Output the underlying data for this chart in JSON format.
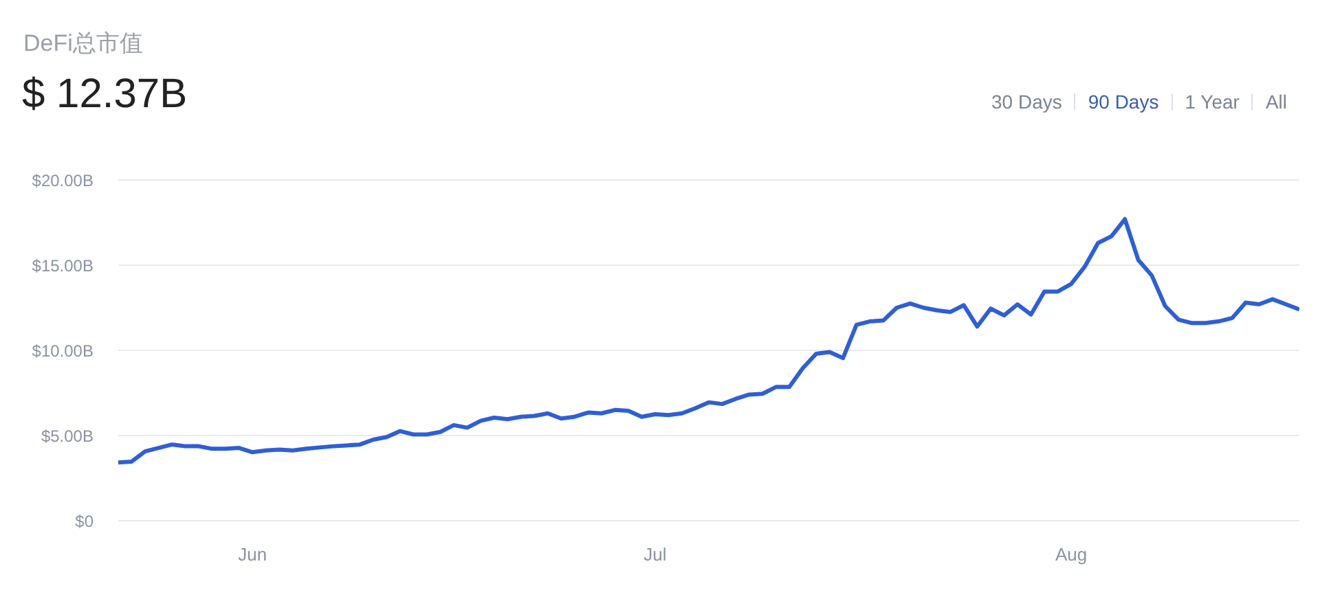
{
  "chart_data": {
    "type": "line",
    "title": "DeFi总市值",
    "subtitle": "$ 12.37B",
    "annotations": [
      "30 Days",
      "90 Days",
      "1 Year",
      "All"
    ],
    "x": [
      "--05-22",
      "--05-23",
      "--05-24",
      "--05-25",
      "--05-26",
      "--05-27",
      "--05-28",
      "--05-29",
      "--05-30",
      "--05-31",
      "--06-01",
      "--06-02",
      "--06-03",
      "--06-04",
      "--06-05",
      "--06-06",
      "--06-07",
      "--06-08",
      "--06-09",
      "--06-10",
      "--06-11",
      "--06-12",
      "--06-13",
      "--06-14",
      "--06-15",
      "--06-16",
      "--06-17",
      "--06-18",
      "--06-19",
      "--06-20",
      "--06-21",
      "--06-22",
      "--06-23",
      "--06-24",
      "--06-25",
      "--06-26",
      "--06-27",
      "--06-28",
      "--06-29",
      "--06-30",
      "--07-01",
      "--07-02",
      "--07-03",
      "--07-04",
      "--07-05",
      "--07-06",
      "--07-07",
      "--07-08",
      "--07-09",
      "--07-10",
      "--07-11",
      "--07-12",
      "--07-13",
      "--07-14",
      "--07-15",
      "--07-16",
      "--07-17",
      "--07-18",
      "--07-19",
      "--07-20",
      "--07-21",
      "--07-22",
      "--07-23",
      "--07-24",
      "--07-25",
      "--07-26",
      "--07-27",
      "--07-28",
      "--07-29",
      "--07-30",
      "--07-31",
      "--08-01",
      "--08-02",
      "--08-03",
      "--08-04",
      "--08-05",
      "--08-06",
      "--08-07",
      "--08-08",
      "--08-09",
      "--08-10",
      "--08-11",
      "--08-12",
      "--08-13",
      "--08-14",
      "--08-15",
      "--08-16",
      "--08-17",
      "--08-18"
    ],
    "series": [
      {
        "color": "#2f5fd6",
        "values": [
          3.42,
          3.47,
          4.07,
          4.27,
          4.47,
          4.37,
          4.37,
          4.22,
          4.22,
          4.27,
          4.02,
          4.12,
          4.17,
          4.12,
          4.22,
          4.3,
          4.37,
          4.42,
          4.47,
          4.76,
          4.91,
          5.26,
          5.06,
          5.06,
          5.21,
          5.61,
          5.46,
          5.86,
          6.05,
          5.96,
          6.1,
          6.15,
          6.3,
          6.0,
          6.1,
          6.35,
          6.3,
          6.5,
          6.45,
          6.1,
          6.25,
          6.2,
          6.3,
          6.6,
          6.95,
          6.85,
          7.15,
          7.4,
          7.45,
          7.85,
          7.85,
          8.95,
          9.8,
          9.9,
          9.55,
          11.5,
          11.7,
          11.75,
          12.5,
          12.75,
          12.5,
          12.35,
          12.25,
          12.65,
          11.4,
          12.45,
          12.05,
          12.7,
          12.1,
          13.45,
          13.45,
          13.9,
          14.9,
          16.3,
          16.7,
          17.7,
          15.3,
          14.4,
          12.6,
          11.8,
          11.6,
          11.6,
          11.7,
          11.9,
          12.8,
          12.7,
          13.0,
          12.7,
          12.4
        ]
      }
    ],
    "xlim": [
      "--05-22",
      "--08-18"
    ],
    "xticks": [
      {
        "value": "--06-01",
        "label": "Jun"
      },
      {
        "value": "--07-01",
        "label": "Jul"
      },
      {
        "value": "--08-01",
        "label": "Aug"
      }
    ],
    "ylim": [
      0,
      20
    ],
    "yticks": [
      {
        "value": 0,
        "label": "$0"
      },
      {
        "value": 5,
        "label": "$5.00B"
      },
      {
        "value": 10,
        "label": "$10.00B"
      },
      {
        "value": 15,
        "label": "$15.00B"
      },
      {
        "value": 20,
        "label": "$20.00B"
      }
    ],
    "grid": "y",
    "legend": false,
    "marker": "none",
    "line_style": "solid"
  }
}
